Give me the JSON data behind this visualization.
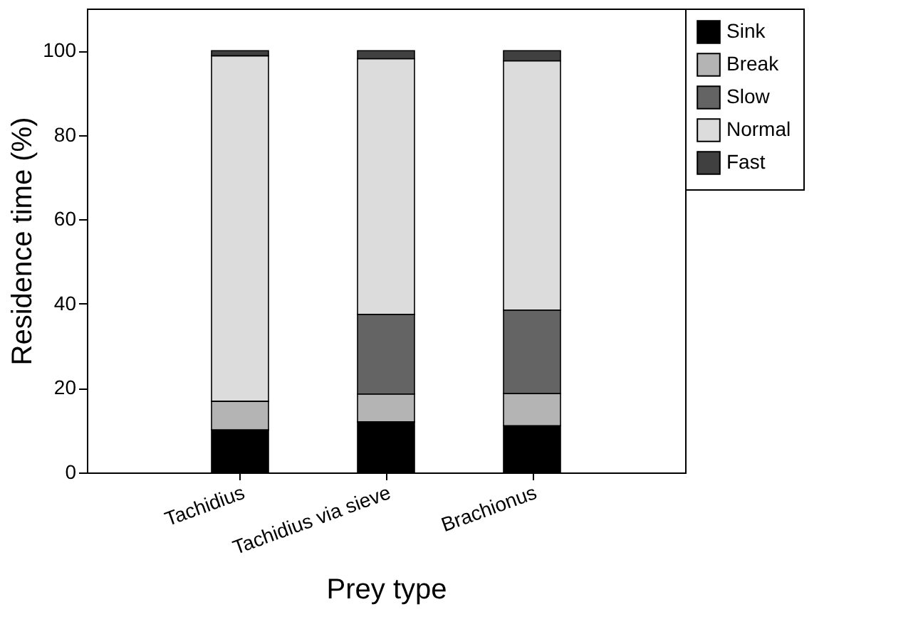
{
  "chart_data": {
    "type": "bar",
    "stacked": true,
    "xlabel": "Prey type",
    "ylabel": "Residence time (%)",
    "categories": [
      "Tachidius",
      "Tachidius via sieve",
      "Brachionus"
    ],
    "series": [
      {
        "name": "Sink",
        "color": "#000000",
        "values": [
          10.1,
          12.0,
          11.1
        ]
      },
      {
        "name": "Break",
        "color": "#b4b4b4",
        "values": [
          6.8,
          6.6,
          7.6
        ]
      },
      {
        "name": "Slow",
        "color": "#646464",
        "values": [
          null,
          18.9,
          19.8
        ]
      },
      {
        "name": "Normal",
        "color": "#dcdcdc",
        "values": [
          81.9,
          60.6,
          59.1
        ]
      },
      {
        "name": "Fast",
        "color": "#404040",
        "values": [
          1.2,
          1.9,
          2.4
        ]
      }
    ],
    "ylim": [
      0,
      110
    ],
    "yticks": [
      0,
      20,
      40,
      60,
      80,
      100
    ],
    "grid": false,
    "legend": "top right"
  }
}
